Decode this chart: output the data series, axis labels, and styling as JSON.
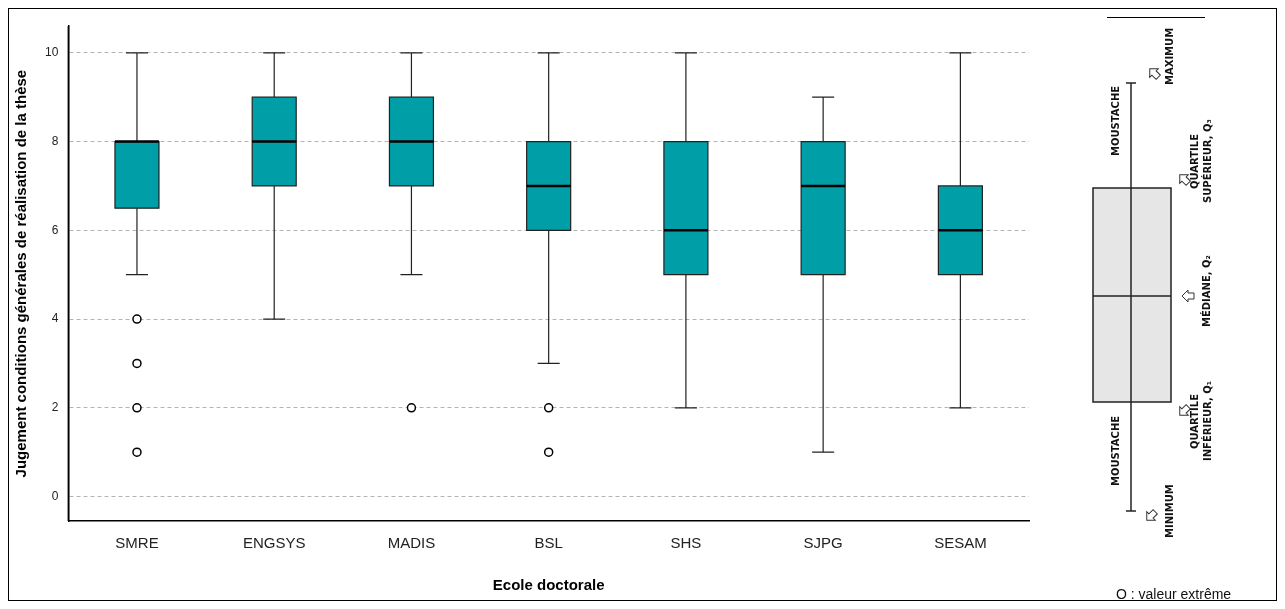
{
  "chart_data": {
    "type": "box",
    "xlabel": "Ecole doctorale",
    "ylabel": "Jugement conditions générales de réalisation de la thèse",
    "categories": [
      "SMRE",
      "ENGSYS",
      "MADIS",
      "BSL",
      "SHS",
      "SJPG",
      "SESAM"
    ],
    "color": "#009fa8",
    "boxes": [
      {
        "low": 5,
        "q1": 6.5,
        "median": 8,
        "q3": 8,
        "high": 10,
        "outliers": [
          4,
          3,
          2,
          1
        ]
      },
      {
        "low": 4,
        "q1": 7,
        "median": 8,
        "q3": 9,
        "high": 10
      },
      {
        "low": 5,
        "q1": 7,
        "median": 8,
        "q3": 9,
        "high": 10,
        "outliers": [
          2
        ]
      },
      {
        "low": 3,
        "q1": 6,
        "median": 7,
        "q3": 8,
        "high": 10,
        "outliers": [
          2,
          1
        ]
      },
      {
        "low": 2,
        "q1": 5,
        "median": 6,
        "q3": 8,
        "high": 10
      },
      {
        "low": 1,
        "q1": 5,
        "median": 7,
        "q3": 8,
        "high": 9
      },
      {
        "low": 2,
        "q1": 5,
        "median": 6,
        "q3": 7,
        "high": 10
      }
    ],
    "ylim": [
      -0.55,
      10.6
    ],
    "yticks": [
      0,
      2,
      4,
      6,
      8,
      10
    ],
    "grid": "y",
    "annotations": [
      "MAXIMUM",
      "MOUSTACHE",
      "QUARTILE SUPÉRIEUR, Q₃",
      "MÉDIANE, Q₂",
      "QUARTILE INFÉRIEUR, Q₁",
      "MOUSTACHE",
      "MINIMUM",
      "O : valeur extrême"
    ]
  }
}
